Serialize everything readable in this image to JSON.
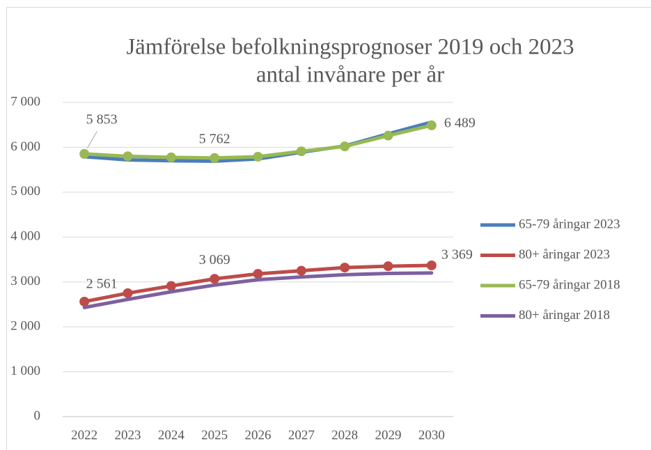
{
  "chart_data": {
    "type": "line",
    "title": "Jämförelse befolkningsprognoser 2019 och 2023",
    "subtitle": "antal invånare per år",
    "categories": [
      "2022",
      "2023",
      "2024",
      "2025",
      "2026",
      "2027",
      "2028",
      "2029",
      "2030"
    ],
    "series": [
      {
        "name": "65-79 åringar 2023",
        "color": "#4a7ebb",
        "markers": false,
        "values": [
          5790,
          5720,
          5700,
          5690,
          5740,
          5890,
          6030,
          6300,
          6560
        ]
      },
      {
        "name": "80+ åringar 2023",
        "color": "#be4b48",
        "markers": true,
        "values": [
          2561,
          2750,
          2910,
          3069,
          3180,
          3250,
          3320,
          3350,
          3369
        ],
        "value_labels": [
          "2 561",
          null,
          null,
          "3 069",
          null,
          null,
          null,
          null,
          "3 369"
        ]
      },
      {
        "name": "65-79 åringar 2018",
        "color": "#98b954",
        "markers": true,
        "values": [
          5853,
          5800,
          5775,
          5762,
          5790,
          5910,
          6020,
          6260,
          6489
        ],
        "value_labels": [
          "5 853",
          null,
          null,
          "5 762",
          null,
          null,
          null,
          null,
          "6 489"
        ]
      },
      {
        "name": "80+ åringar 2018",
        "color": "#7d60a0",
        "markers": false,
        "values": [
          2430,
          2610,
          2780,
          2930,
          3050,
          3110,
          3160,
          3190,
          3200
        ]
      }
    ],
    "ylim": [
      0,
      7000
    ],
    "yticks": [
      0,
      {
        "value": 1000,
        "label": "1 000"
      },
      {
        "value": 2000,
        "label": "2 000"
      },
      {
        "value": 3000,
        "label": "3 000"
      },
      {
        "value": 4000,
        "label": "4 000"
      },
      {
        "value": 5000,
        "label": "5 000"
      },
      {
        "value": 6000,
        "label": "6 000"
      },
      {
        "value": 7000,
        "label": "7 000"
      }
    ],
    "grid": true,
    "legend": "right"
  }
}
